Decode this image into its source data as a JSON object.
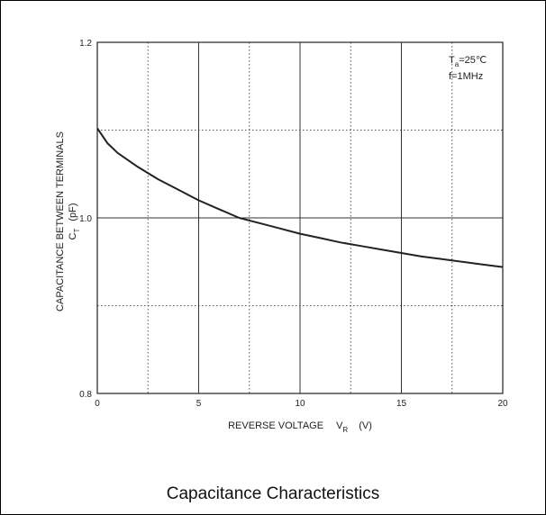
{
  "chart_data": {
    "type": "line",
    "title": "Capacitance Characteristics",
    "xlabel": {
      "text": "REVERSE VOLTAGE",
      "symbol": "V",
      "subscript": "R",
      "unit": "(V)"
    },
    "ylabel": {
      "line1": "CAPACITANCE BETWEEN TERMINALS",
      "symbol": "C",
      "subscript": "T",
      "unit": "(pF)"
    },
    "xlim": [
      0,
      20
    ],
    "ylim": [
      0.8,
      1.2
    ],
    "x_ticks": [
      0,
      5,
      10,
      15,
      20
    ],
    "x_tick_labels": [
      "0",
      "5",
      "10",
      "15",
      "20"
    ],
    "y_ticks": [
      0.8,
      1.0,
      1.2
    ],
    "y_tick_labels": [
      "0.8",
      "1.0",
      "1.2"
    ],
    "grid": {
      "major_solid_x": [
        5,
        10,
        15
      ],
      "minor_dotted_x": [
        2.5,
        7.5,
        12.5,
        17.5
      ],
      "major_solid_y": [
        1.0
      ],
      "minor_dotted_y": [
        0.9,
        1.1
      ]
    },
    "annotations": {
      "temp_symbol": "T",
      "temp_subscript": "a",
      "temp_value": "=25℃",
      "freq": "f=1MHz"
    },
    "series": [
      {
        "color": "#222222",
        "x": [
          0,
          0.5,
          1,
          2,
          3,
          4,
          5,
          6,
          7,
          8,
          9,
          10,
          11,
          12,
          13,
          14,
          15,
          16,
          17,
          18,
          19,
          20
        ],
        "y": [
          1.102,
          1.085,
          1.074,
          1.058,
          1.044,
          1.032,
          1.02,
          1.01,
          1.0,
          0.994,
          0.988,
          0.982,
          0.977,
          0.972,
          0.968,
          0.964,
          0.96,
          0.956,
          0.953,
          0.95,
          0.947,
          0.944
        ]
      }
    ]
  }
}
